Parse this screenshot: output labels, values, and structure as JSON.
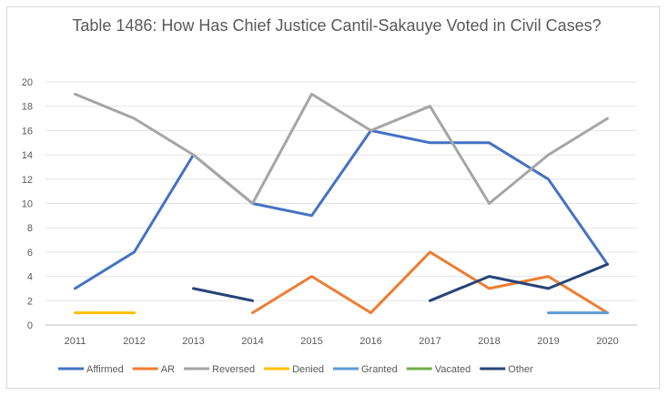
{
  "chart_data": {
    "type": "line",
    "title": "Table 1486: How Has Chief Justice Cantil-Sakauye Voted in Civil Cases?",
    "xlabel": "",
    "ylabel": "",
    "x": [
      "2011",
      "2012",
      "2013",
      "2014",
      "2015",
      "2016",
      "2017",
      "2018",
      "2019",
      "2020"
    ],
    "ylim": [
      0,
      20
    ],
    "yticks": [
      0,
      2,
      4,
      6,
      8,
      10,
      12,
      14,
      16,
      18,
      20
    ],
    "grid": true,
    "legend_position": "bottom",
    "series": [
      {
        "name": "Affirmed",
        "color": "#4472c4",
        "values": [
          3,
          6,
          14,
          10,
          9,
          16,
          15,
          15,
          12,
          5
        ]
      },
      {
        "name": "AR",
        "color": "#ed7d31",
        "values": [
          null,
          null,
          null,
          1,
          4,
          1,
          6,
          3,
          4,
          1
        ]
      },
      {
        "name": "Reversed",
        "color": "#a5a5a5",
        "values": [
          19,
          17,
          14,
          10,
          19,
          16,
          18,
          10,
          14,
          17
        ]
      },
      {
        "name": "Denied",
        "color": "#ffc000",
        "values": [
          1,
          1,
          null,
          null,
          null,
          null,
          null,
          null,
          null,
          null
        ]
      },
      {
        "name": "Granted",
        "color": "#5b9bd5",
        "values": [
          null,
          null,
          null,
          null,
          null,
          null,
          null,
          null,
          1,
          1
        ]
      },
      {
        "name": "Vacated",
        "color": "#70ad47",
        "values": [
          null,
          null,
          null,
          null,
          null,
          null,
          null,
          null,
          null,
          null
        ]
      },
      {
        "name": "Other",
        "color": "#264478",
        "values": [
          null,
          null,
          3,
          2,
          null,
          null,
          2,
          4,
          3,
          5
        ]
      }
    ]
  }
}
